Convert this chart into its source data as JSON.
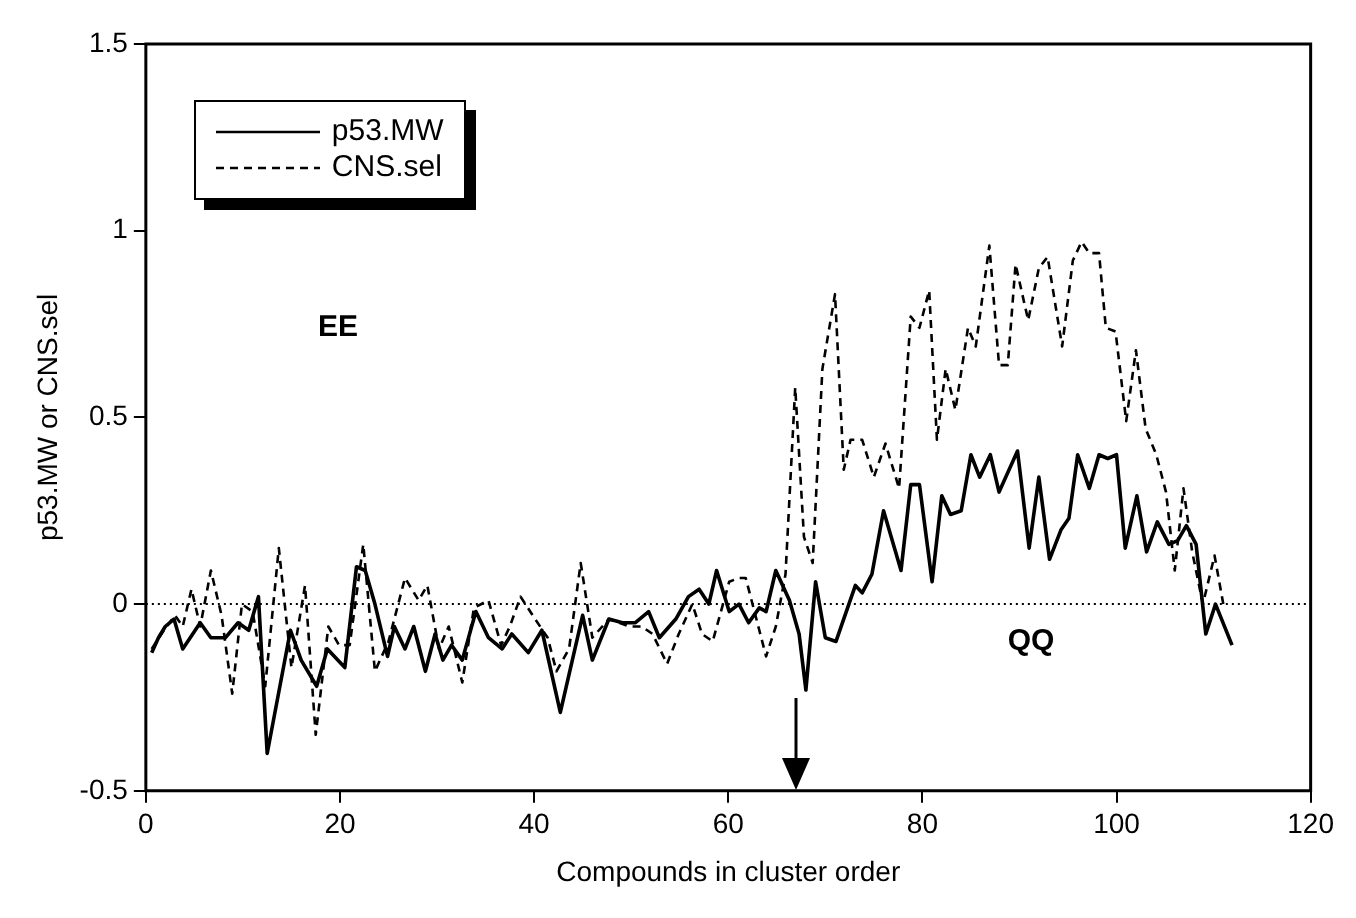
{
  "chart_data": {
    "type": "line",
    "xlabel": "Compounds in cluster order",
    "ylabel": "p53.MW or CNS.sel",
    "xlim": [
      0,
      120
    ],
    "xticks": [
      0,
      20,
      40,
      60,
      80,
      100,
      120
    ],
    "ylim": [
      -0.5,
      1.5
    ],
    "yticks": [
      -0.5,
      0,
      0.5,
      1,
      1.5
    ],
    "grid": false,
    "legend": "top left",
    "marker": "none",
    "annotations": [
      "EE",
      "QQ"
    ],
    "ref_lines": [
      {
        "axis": "y",
        "value": 0,
        "color": "#000000",
        "line_style": "dotted"
      }
    ],
    "series": [
      {
        "name": "p53.MW",
        "color": "#000000",
        "line_style": "solid",
        "x": [
          0.6,
          1.3,
          2,
          2.9,
          3.8,
          5.6,
          6.7,
          8.2,
          9.5,
          10.6,
          11.6,
          12.5,
          14.9,
          16,
          17.6,
          18.7,
          20.5,
          21.7,
          22.6,
          23.6,
          24.9,
          25.6,
          26.7,
          27.6,
          28.8,
          29.8,
          30.6,
          31.5,
          32.6,
          34,
          35.3,
          36.7,
          37.7,
          39.4,
          40.8,
          42.7,
          45,
          46,
          47.7,
          49.1,
          50.4,
          51.8,
          52.9,
          54.6,
          55.9,
          57,
          58,
          58.8,
          60.1,
          61.1,
          62.1,
          63.2,
          63.9,
          64.9,
          66.3,
          67.3,
          68,
          69,
          70,
          71.1,
          73.1,
          73.8,
          74.8,
          76,
          77.8,
          78.8,
          79.7,
          81,
          82,
          82.9,
          84,
          85,
          85.9,
          87,
          87.9,
          89.8,
          91,
          92,
          93.1,
          94.3,
          95.1,
          96,
          97.2,
          98.2,
          99.1,
          100,
          100.9,
          102.1,
          103.1,
          104.2,
          105.4,
          106.3,
          107.2,
          108.2,
          109.2,
          110.2,
          111.9
        ],
        "values": [
          -0.13,
          -0.09,
          -0.06,
          -0.04,
          -0.12,
          -0.05,
          -0.09,
          -0.09,
          -0.05,
          -0.07,
          0.02,
          -0.4,
          -0.07,
          -0.15,
          -0.22,
          -0.12,
          -0.17,
          0.1,
          0.09,
          0,
          -0.14,
          -0.06,
          -0.12,
          -0.06,
          -0.18,
          -0.08,
          -0.15,
          -0.11,
          -0.15,
          -0.02,
          -0.09,
          -0.12,
          -0.08,
          -0.13,
          -0.07,
          -0.29,
          -0.03,
          -0.15,
          -0.04,
          -0.05,
          -0.05,
          -0.02,
          -0.09,
          -0.04,
          0.02,
          0.04,
          0,
          0.09,
          -0.02,
          0,
          -0.05,
          -0.01,
          -0.02,
          0.09,
          0.01,
          -0.08,
          -0.23,
          0.06,
          -0.09,
          -0.1,
          0.05,
          0.03,
          0.08,
          0.25,
          0.09,
          0.32,
          0.32,
          0.06,
          0.29,
          0.24,
          0.25,
          0.4,
          0.34,
          0.4,
          0.3,
          0.41,
          0.15,
          0.34,
          0.12,
          0.2,
          0.23,
          0.4,
          0.31,
          0.4,
          0.39,
          0.4,
          0.15,
          0.29,
          0.14,
          0.22,
          0.16,
          0.17,
          0.21,
          0.16,
          -0.08,
          0,
          -0.11
        ]
      },
      {
        "name": "CNS.sel",
        "color": "#000000",
        "line_style": "dashed",
        "x": [
          0.6,
          1.6,
          3,
          3.8,
          4.7,
          5.6,
          6.7,
          7.8,
          8.9,
          9.9,
          11,
          12.3,
          13.7,
          15,
          16.4,
          17.5,
          18.8,
          19.9,
          21,
          22.4,
          23.6,
          25,
          26.7,
          28.1,
          29,
          30.2,
          31.2,
          32.6,
          33.8,
          35.3,
          36.6,
          37.5,
          38.6,
          40.1,
          41.4,
          42.3,
          43.6,
          44.8,
          46,
          47.7,
          49.8,
          51.1,
          52.2,
          53.7,
          54.9,
          56.3,
          57.3,
          58.4,
          60.1,
          61.1,
          61.8,
          63.2,
          63.9,
          64.9,
          65.9,
          66.9,
          67.8,
          68.7,
          69.7,
          71,
          71.9,
          72.6,
          73.8,
          75,
          76.2,
          77.6,
          78.8,
          79.7,
          80.7,
          81.5,
          82.4,
          83.4,
          84.7,
          85.5,
          86.9,
          87.9,
          88.8,
          89.6,
          90.9,
          92,
          92.9,
          94.4,
          95.5,
          96.4,
          97.2,
          98.2,
          98.9,
          99.9,
          101,
          102,
          103,
          104.1,
          105.1,
          106,
          106.9,
          107.8,
          108.9,
          110.1,
          111
        ],
        "values": [
          -0.12,
          -0.08,
          -0.03,
          -0.06,
          0.04,
          -0.06,
          0.09,
          -0.03,
          -0.24,
          0,
          -0.02,
          -0.22,
          0.15,
          -0.17,
          0.05,
          -0.35,
          -0.06,
          -0.11,
          -0.11,
          0.16,
          -0.18,
          -0.1,
          0.07,
          0.01,
          0.05,
          -0.12,
          -0.06,
          -0.21,
          -0.01,
          0.01,
          -0.11,
          -0.06,
          0.02,
          -0.04,
          -0.09,
          -0.18,
          -0.12,
          0.11,
          -0.09,
          -0.04,
          -0.06,
          -0.06,
          -0.08,
          -0.16,
          -0.08,
          0,
          -0.08,
          -0.1,
          0.06,
          0.07,
          0.07,
          -0.07,
          -0.14,
          -0.06,
          0.08,
          0.58,
          0.18,
          0.11,
          0.63,
          0.83,
          0.36,
          0.44,
          0.44,
          0.34,
          0.43,
          0.31,
          0.77,
          0.74,
          0.84,
          0.44,
          0.63,
          0.52,
          0.74,
          0.69,
          0.96,
          0.64,
          0.64,
          0.91,
          0.76,
          0.9,
          0.93,
          0.69,
          0.92,
          0.97,
          0.94,
          0.94,
          0.74,
          0.73,
          0.49,
          0.68,
          0.47,
          0.4,
          0.3,
          0.09,
          0.31,
          0.14,
          0,
          0.13,
          0
        ]
      }
    ]
  }
}
